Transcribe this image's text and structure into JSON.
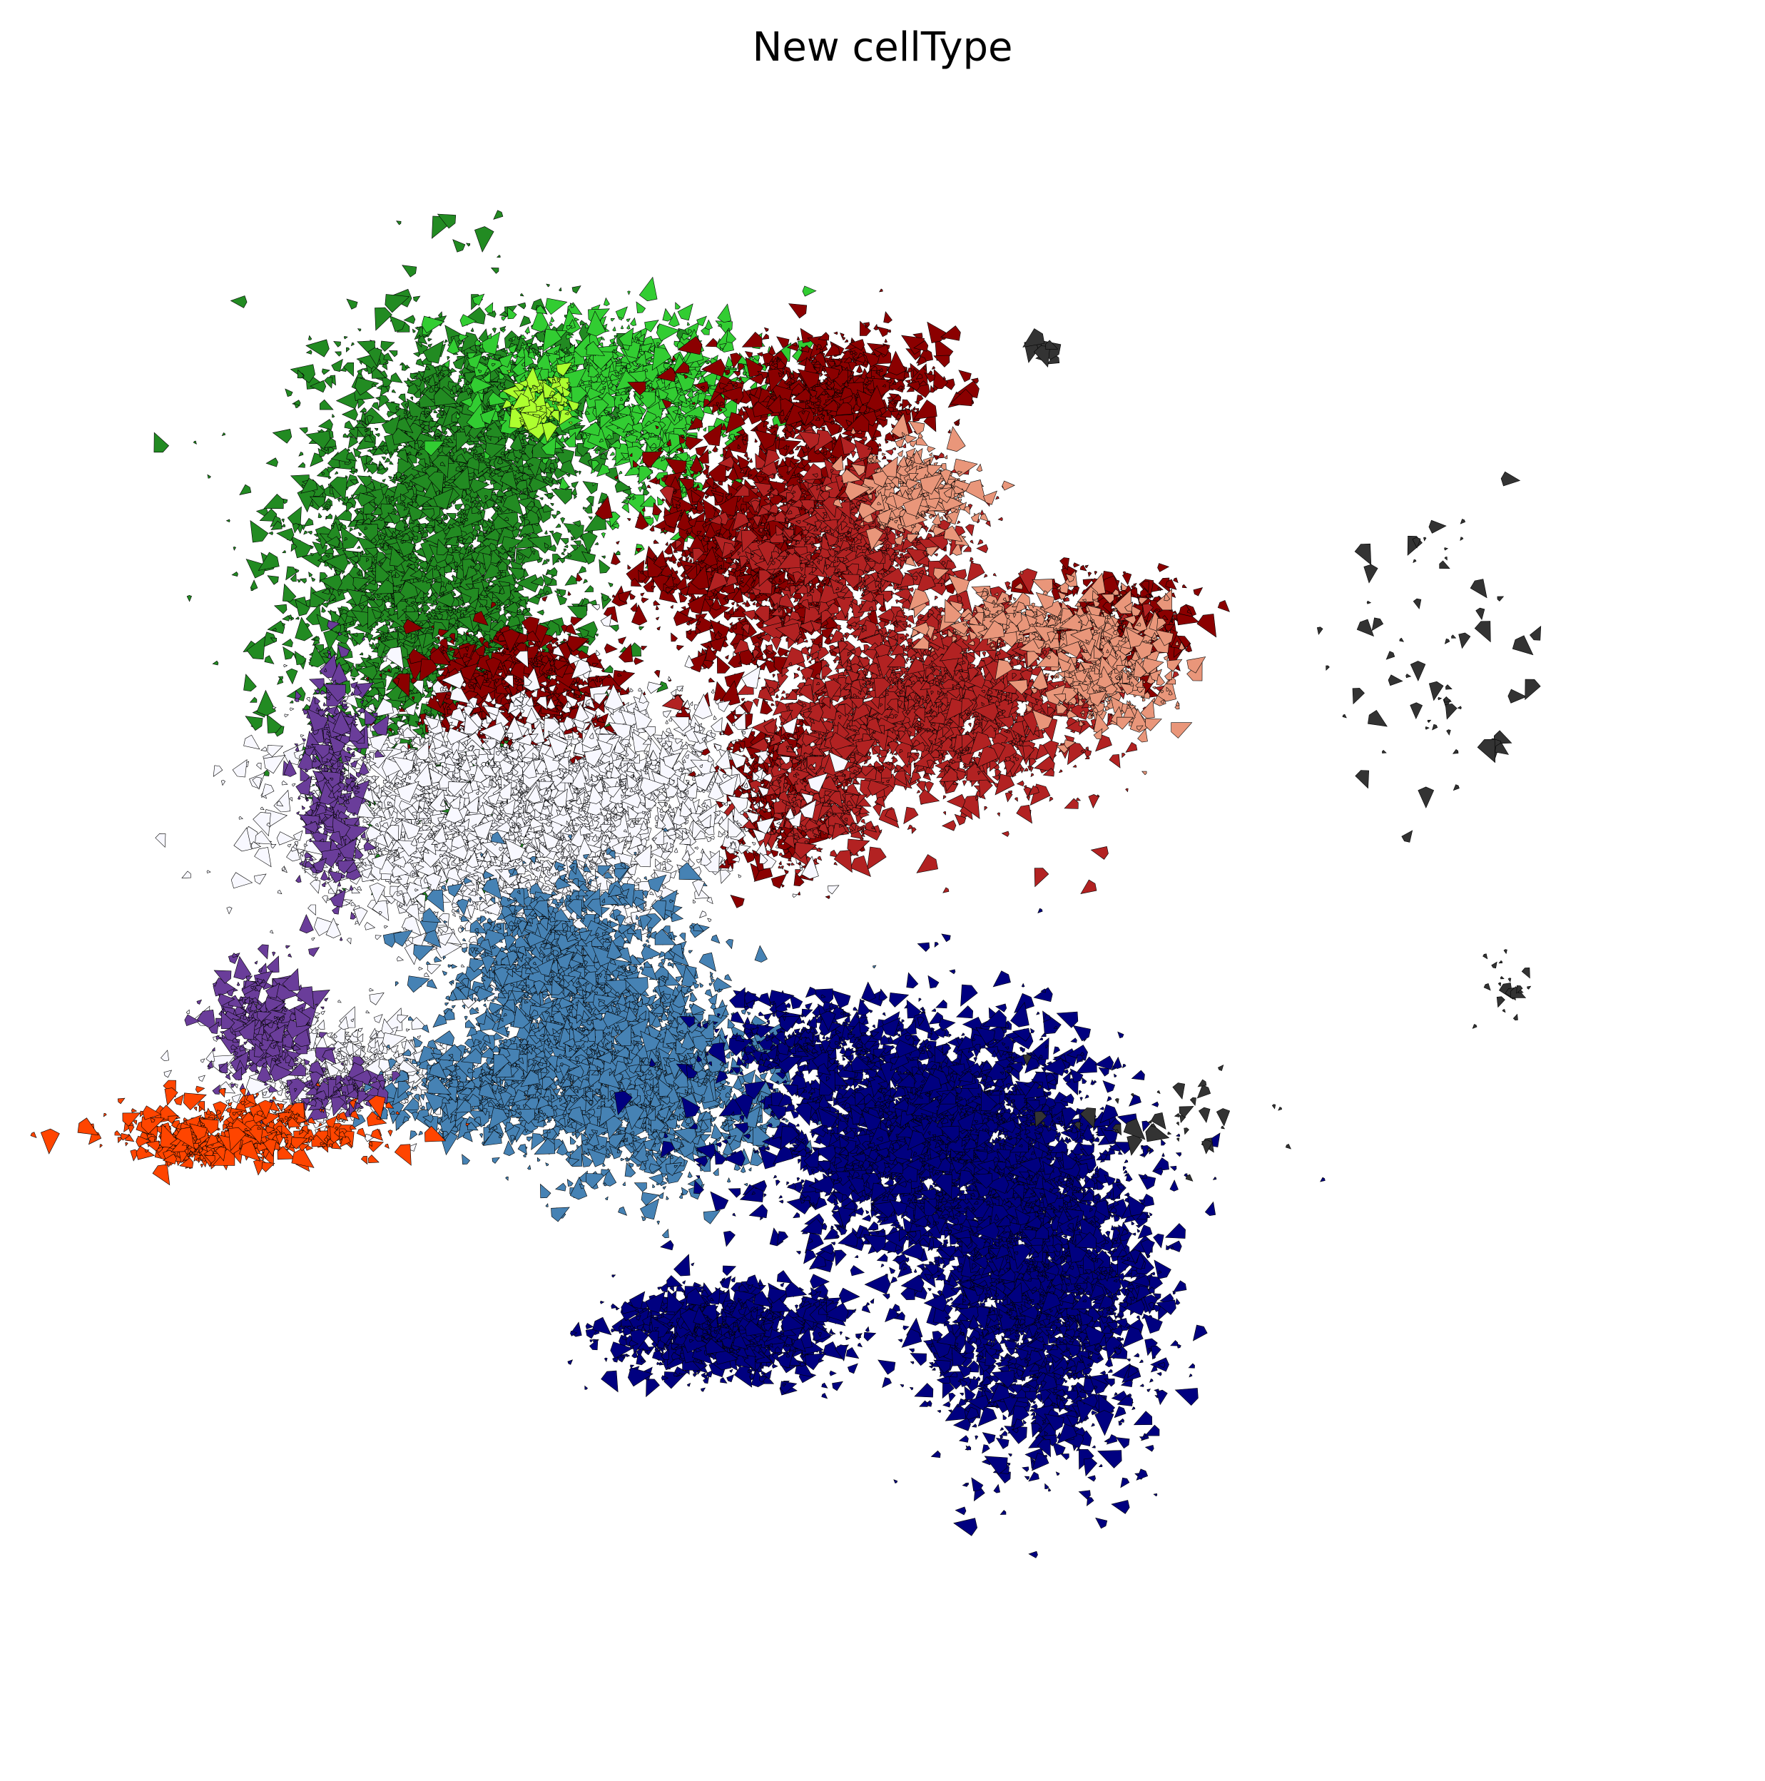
{
  "chart_data": {
    "type": "scatter",
    "title": "New cellType",
    "xlabel": "",
    "ylabel": "",
    "grid": false,
    "legend": "none",
    "axes_visible": false,
    "marker": "arrow",
    "xlim": [
      0,
      100
    ],
    "ylim": [
      0,
      100
    ],
    "series": [
      {
        "color": "#228B22",
        "clusters": [
          {
            "x": 22,
            "y": 72,
            "sx": 4.5,
            "sy": 6.5,
            "n": 2600
          },
          {
            "x": 26,
            "y": 82,
            "sx": 4.0,
            "sy": 2.5,
            "n": 900
          }
        ]
      },
      {
        "color": "#32CD32",
        "clusters": [
          {
            "x": 33,
            "y": 84,
            "sx": 4.5,
            "sy": 2.0,
            "n": 700
          },
          {
            "x": 36,
            "y": 80,
            "sx": 2.0,
            "sy": 2.5,
            "n": 250
          }
        ]
      },
      {
        "color": "#ADFF2F",
        "clusters": [
          {
            "x": 28.5,
            "y": 82.5,
            "sx": 1.0,
            "sy": 0.8,
            "n": 90
          }
        ]
      },
      {
        "color": "#8B0000",
        "clusters": [
          {
            "x": 47,
            "y": 83,
            "sx": 3.5,
            "sy": 1.8,
            "n": 700
          },
          {
            "x": 42,
            "y": 73,
            "sx": 3.5,
            "sy": 3.5,
            "n": 1200
          },
          {
            "x": 27,
            "y": 65,
            "sx": 3.0,
            "sy": 1.8,
            "n": 700
          },
          {
            "x": 64,
            "y": 69,
            "sx": 2.5,
            "sy": 1.5,
            "n": 400
          },
          {
            "x": 44,
            "y": 59,
            "sx": 2.0,
            "sy": 2.5,
            "n": 400
          }
        ]
      },
      {
        "color": "#B22222",
        "clusters": [
          {
            "x": 48,
            "y": 74,
            "sx": 3.5,
            "sy": 2.5,
            "n": 800
          },
          {
            "x": 53,
            "y": 64,
            "sx": 5.0,
            "sy": 3.0,
            "n": 1700
          },
          {
            "x": 46,
            "y": 58,
            "sx": 2.0,
            "sy": 2.0,
            "n": 400
          }
        ]
      },
      {
        "color": "#E9967A",
        "clusters": [
          {
            "x": 52,
            "y": 77,
            "sx": 2.0,
            "sy": 1.5,
            "n": 300
          },
          {
            "x": 64,
            "y": 66,
            "sx": 2.0,
            "sy": 2.0,
            "n": 400
          },
          {
            "x": 59,
            "y": 69,
            "sx": 3.0,
            "sy": 1.0,
            "n": 250
          }
        ]
      },
      {
        "color": "#F8F8FF",
        "clusters": [
          {
            "x": 24,
            "y": 57,
            "sx": 5.5,
            "sy": 3.5,
            "n": 2200
          },
          {
            "x": 33,
            "y": 58,
            "sx": 5.0,
            "sy": 3.0,
            "n": 1200
          },
          {
            "x": 16,
            "y": 41,
            "sx": 3.5,
            "sy": 1.5,
            "n": 500
          }
        ]
      },
      {
        "color": "#4682B4",
        "clusters": [
          {
            "x": 30,
            "y": 47,
            "sx": 3.5,
            "sy": 3.0,
            "n": 1300
          },
          {
            "x": 35,
            "y": 40,
            "sx": 4.0,
            "sy": 3.0,
            "n": 1400
          },
          {
            "x": 26,
            "y": 40,
            "sx": 3.5,
            "sy": 1.5,
            "n": 600
          }
        ]
      },
      {
        "color": "#000080",
        "clusters": [
          {
            "x": 53,
            "y": 37,
            "sx": 5.0,
            "sy": 3.5,
            "n": 2400
          },
          {
            "x": 60,
            "y": 28,
            "sx": 3.5,
            "sy": 5.0,
            "n": 2400
          },
          {
            "x": 40,
            "y": 25,
            "sx": 3.5,
            "sy": 1.4,
            "n": 800
          },
          {
            "x": 45,
            "y": 43,
            "sx": 3.0,
            "sy": 1.2,
            "n": 300
          }
        ]
      },
      {
        "color": "#6A3D9A",
        "clusters": [
          {
            "x": 15.5,
            "y": 59,
            "sx": 1.0,
            "sy": 3.5,
            "n": 350
          },
          {
            "x": 11,
            "y": 44,
            "sx": 1.5,
            "sy": 2.0,
            "n": 300
          },
          {
            "x": 16,
            "y": 40,
            "sx": 1.5,
            "sy": 0.8,
            "n": 100
          }
        ]
      },
      {
        "color": "#FF4500",
        "clusters": [
          {
            "x": 10,
            "y": 37.5,
            "sx": 4.0,
            "sy": 1.0,
            "n": 350
          },
          {
            "x": 7,
            "y": 36.5,
            "sx": 1.2,
            "sy": 0.6,
            "n": 150
          }
        ]
      },
      {
        "color": "#333333",
        "clusters": [
          {
            "x": 85,
            "y": 67,
            "sx": 3.0,
            "sy": 5.0,
            "n": 60
          },
          {
            "x": 89,
            "y": 46,
            "sx": 1.0,
            "sy": 1.5,
            "n": 20
          },
          {
            "x": 68,
            "y": 38,
            "sx": 4.0,
            "sy": 1.5,
            "n": 40
          },
          {
            "x": 60,
            "y": 86,
            "sx": 0.5,
            "sy": 0.5,
            "n": 10
          }
        ]
      }
    ]
  }
}
